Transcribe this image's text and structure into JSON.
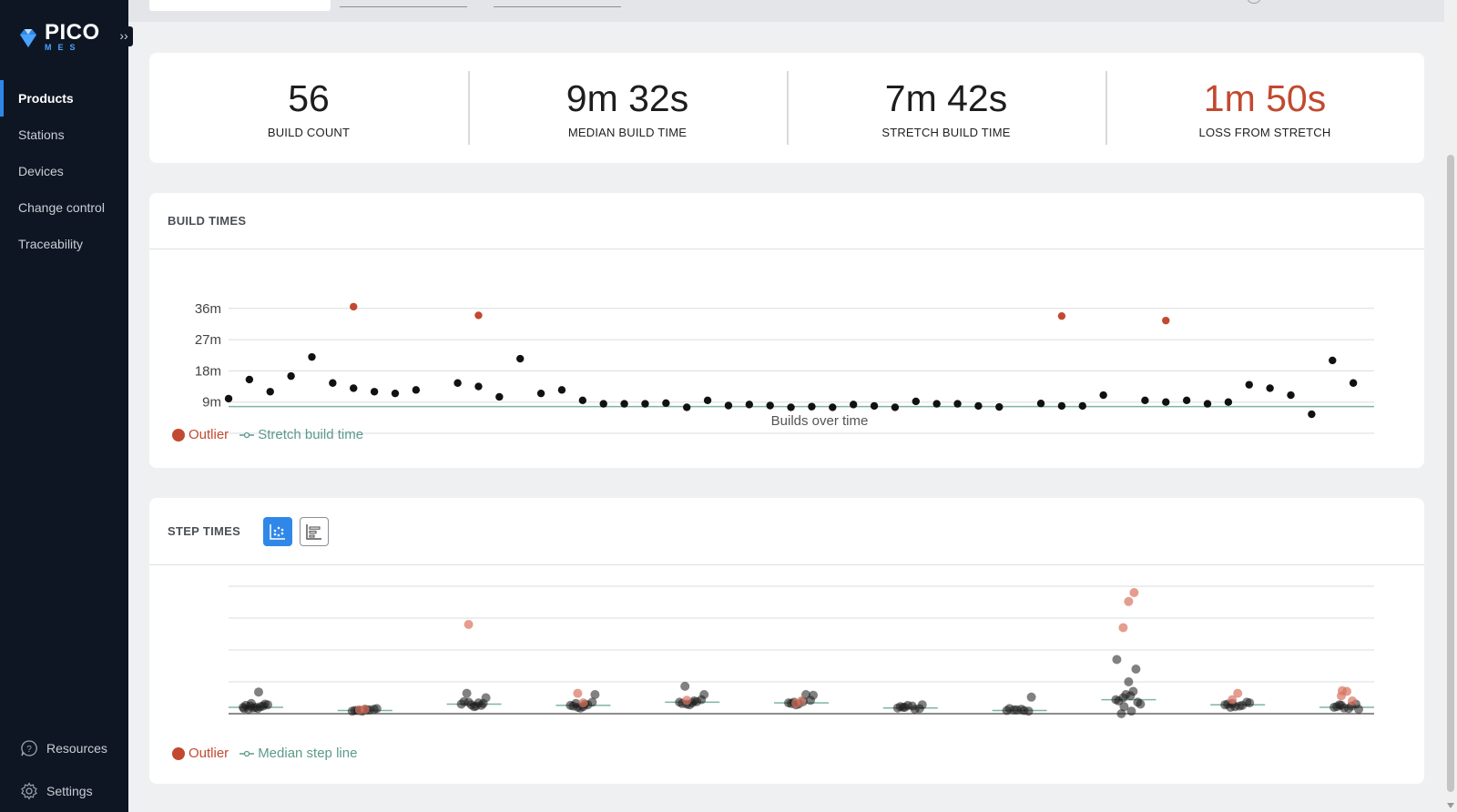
{
  "app": {
    "logo_text": "PICO",
    "logo_sub": "MES"
  },
  "sidebar": {
    "items": [
      {
        "label": "Products",
        "active": true
      },
      {
        "label": "Stations"
      },
      {
        "label": "Devices"
      },
      {
        "label": "Change control"
      },
      {
        "label": "Traceability"
      }
    ],
    "bottom": [
      {
        "label": "Resources",
        "icon": "help-circle-icon"
      },
      {
        "label": "Settings",
        "icon": "gear-icon"
      }
    ]
  },
  "stats": [
    {
      "value": "56",
      "label": "BUILD COUNT"
    },
    {
      "value": "9m 32s",
      "label": "MEDIAN BUILD TIME"
    },
    {
      "value": "7m 42s",
      "label": "STRETCH BUILD TIME"
    },
    {
      "value": "1m 50s",
      "label": "LOSS FROM STRETCH",
      "color": "#c2492f"
    }
  ],
  "build_times": {
    "title": "BUILD TIMES",
    "legend_outlier": "Outlier",
    "legend_line": "Stretch build time",
    "xlabel": "Builds over time"
  },
  "step_times": {
    "title": "STEP TIMES",
    "legend_outlier": "Outlier",
    "legend_line": "Median step line"
  },
  "colors": {
    "accent": "#2f88e8",
    "outlier": "#c2492f",
    "stretch_line": "#5b9a8b",
    "sidebar_bg": "#0f1623"
  },
  "chart_data": [
    {
      "type": "scatter",
      "title": "BUILD TIMES",
      "xlabel": "Builds over time",
      "ylabel": "",
      "y_ticks": [
        "9m",
        "18m",
        "27m",
        "36m"
      ],
      "y_tick_values": [
        9,
        18,
        27,
        36
      ],
      "ylim": [
        0,
        38
      ],
      "reference_line": {
        "name": "Stretch build time",
        "value": 7.7
      },
      "series": [
        {
          "name": "builds",
          "values": [
            10.0,
            15.5,
            12.0,
            16.5,
            22.0,
            14.5,
            13.0,
            12.0,
            11.5,
            12.5,
            0,
            14.5,
            13.5,
            10.5,
            21.5,
            11.5,
            12.5,
            9.5,
            8.5,
            8.5,
            8.5,
            8.7,
            7.5,
            9.5,
            8.0,
            8.3,
            8.0,
            7.5,
            7.7,
            7.5,
            8.3,
            7.9,
            7.5,
            9.2,
            8.5,
            8.5,
            7.9,
            7.6,
            0,
            8.6,
            7.9,
            7.9,
            11.0,
            0,
            9.5,
            9.0,
            9.5,
            8.5,
            9.0,
            14.0,
            13.0,
            11.0,
            5.5,
            21.0,
            14.5
          ]
        },
        {
          "name": "Outlier",
          "points": [
            {
              "x": 6,
              "y": 36.5
            },
            {
              "x": 12,
              "y": 34.0
            },
            {
              "x": 40,
              "y": 33.8
            },
            {
              "x": 45,
              "y": 32.5
            }
          ]
        }
      ]
    },
    {
      "type": "scatter",
      "title": "STEP TIMES",
      "categories": 11,
      "groups": [
        {
          "median": 1.0,
          "points": [
            1.0,
            1.2,
            0.8,
            1.5,
            1.3,
            0.9,
            1.1,
            1.4,
            0.7,
            1.0,
            1.2,
            0.8,
            1.6,
            3.4
          ],
          "outliers": []
        },
        {
          "median": 0.5,
          "points": [
            0.4,
            0.5,
            0.6,
            0.7,
            0.5,
            0.4,
            0.6,
            0.8,
            0.5,
            0.7
          ],
          "outliers": [
            0.6,
            0.7
          ]
        },
        {
          "median": 1.5,
          "points": [
            1.5,
            1.8,
            1.2,
            1.6,
            1.9,
            1.4,
            1.7,
            2.5,
            3.2,
            1.1,
            1.3
          ],
          "outliers": [
            14.0
          ]
        },
        {
          "median": 1.3,
          "points": [
            1.3,
            1.0,
            1.5,
            1.8,
            1.2,
            0.9,
            1.4,
            3.0,
            1.6,
            1.1
          ],
          "outliers": [
            3.2,
            1.7
          ]
        },
        {
          "median": 1.8,
          "points": [
            1.8,
            1.5,
            2.0,
            2.2,
            1.6,
            1.4,
            1.9,
            3.0,
            4.3,
            1.7
          ],
          "outliers": [
            2.1
          ]
        },
        {
          "median": 1.7,
          "points": [
            1.7,
            1.4,
            1.9,
            2.1,
            1.6,
            1.5,
            3.0,
            2.9,
            1.8
          ],
          "outliers": [
            1.6,
            2.0
          ]
        },
        {
          "median": 0.9,
          "points": [
            0.9,
            1.0,
            1.2,
            0.8,
            1.1,
            1.3,
            0.7,
            1.4,
            1.0
          ],
          "outliers": []
        },
        {
          "median": 0.5,
          "points": [
            0.5,
            0.6,
            0.7,
            0.4,
            0.8,
            0.6,
            0.5,
            2.6
          ],
          "outliers": []
        },
        {
          "median": 2.2,
          "points": [
            2.2,
            2.5,
            2.8,
            1.8,
            2.0,
            3.0,
            3.5,
            1.5,
            0.0,
            5.0,
            7.0,
            8.5,
            1.1,
            0.4
          ],
          "outliers": [
            13.5,
            17.6,
            19.0
          ]
        },
        {
          "median": 1.4,
          "points": [
            1.4,
            1.6,
            1.2,
            1.8,
            1.5,
            1.1,
            1.3,
            1.7,
            1.0
          ],
          "outliers": [
            2.2,
            3.2
          ]
        },
        {
          "median": 1.0,
          "points": [
            1.0,
            1.3,
            0.8,
            1.5,
            1.1,
            0.9,
            1.2,
            0.7,
            1.4
          ],
          "outliers": [
            2.8,
            3.5,
            2.0,
            3.6
          ]
        }
      ]
    }
  ]
}
